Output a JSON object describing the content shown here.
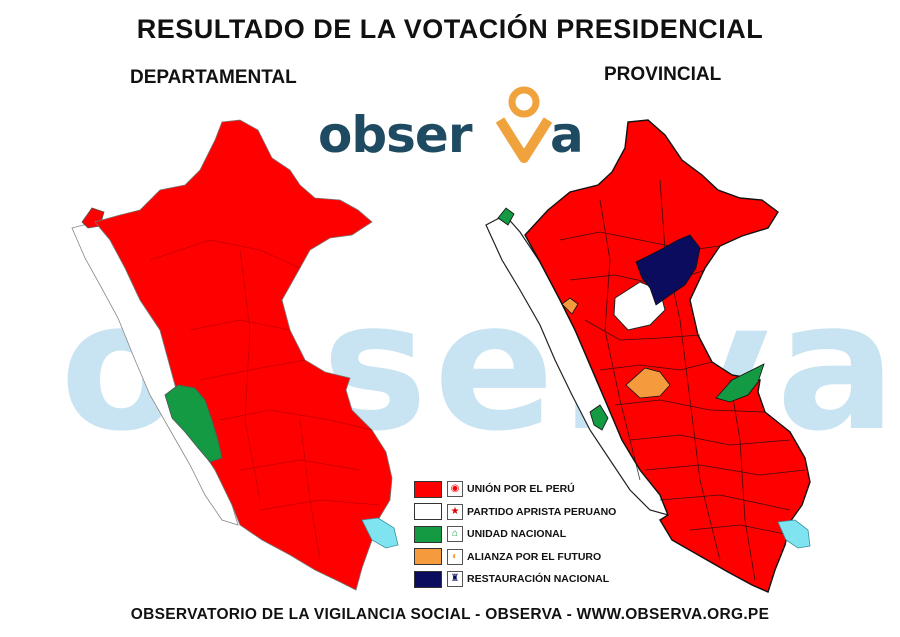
{
  "header": {
    "title": "RESULTADO DE LA VOTACIÓN PRESIDENCIAL",
    "left_subtitle": "DEPARTAMENTAL",
    "right_subtitle": "PROVINCIAL"
  },
  "logo": {
    "text_main": "obser",
    "text_tail": "a",
    "pin_color": "#f0a23c",
    "text_color": "#1e4b62"
  },
  "watermark": {
    "text": "observa"
  },
  "legend": {
    "items": [
      {
        "label": "UNIÓN POR EL PERÚ",
        "color": "#ff0000",
        "icon": "upp-emblem-icon",
        "glyph": "◉"
      },
      {
        "label": "PARTIDO APRISTA PERUANO",
        "color": "#ffffff",
        "icon": "apra-star-icon",
        "glyph": "★"
      },
      {
        "label": "UNIDAD NACIONAL",
        "color": "#139a43",
        "icon": "un-map-icon",
        "glyph": "⌂"
      },
      {
        "label": "ALIANZA POR EL FUTURO",
        "color": "#f59b3d",
        "icon": "apf-emblem-icon",
        "glyph": "◐"
      },
      {
        "label": "RESTAURACIÓN NACIONAL",
        "color": "#0b0c5e",
        "icon": "rn-emblem-icon",
        "glyph": "♜"
      }
    ]
  },
  "map_colors": {
    "red": "#ff0000",
    "white": "#ffffff",
    "green": "#139a43",
    "orange": "#f59b3d",
    "navy": "#0b0c5e",
    "cyan": "#7fe4f0"
  },
  "footer": {
    "text": "OBSERVATORIO DE LA VIGILANCIA SOCIAL - OBSERVA - WWW.OBSERVA.ORG.PE"
  }
}
